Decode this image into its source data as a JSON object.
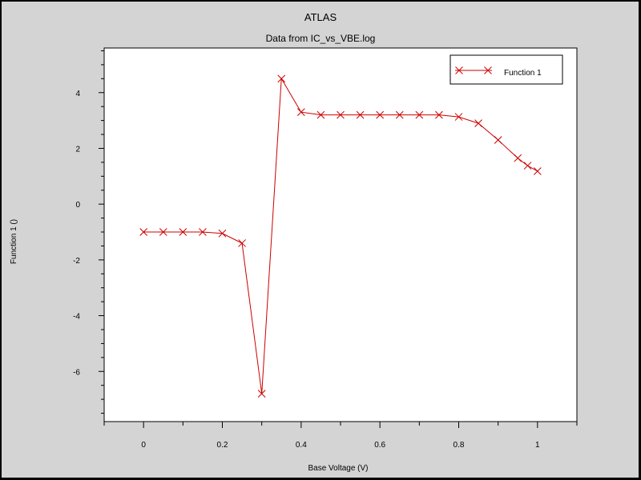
{
  "window": {
    "title": "ATLAS",
    "subtitle": "Data from IC_vs_VBE.log"
  },
  "chart_data": {
    "type": "line",
    "title": "ATLAS",
    "subtitle": "Data from IC_vs_VBE.log",
    "xlabel": "Base Voltage (V)",
    "ylabel": "Function 1 ()",
    "xlim": [
      -0.1,
      1.1
    ],
    "ylim": [
      -7.8,
      5.6
    ],
    "xticks": [
      0,
      0.2,
      0.4,
      0.6,
      0.8,
      1
    ],
    "xtick_labels": [
      "0",
      "0.2",
      "0.4",
      "0.6",
      "0.8",
      "1"
    ],
    "yticks": [
      -6,
      -4,
      -2,
      0,
      2,
      4
    ],
    "ytick_labels": [
      "-6",
      "-4",
      "-2",
      "0",
      "2",
      "4"
    ],
    "grid": false,
    "legend_position": "top-right",
    "series": [
      {
        "name": "Function 1",
        "color": "#cc0000",
        "marker": "x",
        "x": [
          0,
          0.05,
          0.1,
          0.15,
          0.2,
          0.25,
          0.3,
          0.35,
          0.4,
          0.45,
          0.5,
          0.55,
          0.6,
          0.65,
          0.7,
          0.75,
          0.8,
          0.85,
          0.9,
          0.95,
          0.975,
          1
        ],
        "y": [
          -1.0,
          -1.0,
          -1.0,
          -1.0,
          -1.05,
          -1.4,
          -6.8,
          4.5,
          3.3,
          3.2,
          3.2,
          3.2,
          3.2,
          3.2,
          3.2,
          3.2,
          3.13,
          2.9,
          2.3,
          1.65,
          1.38,
          1.18
        ]
      }
    ]
  }
}
